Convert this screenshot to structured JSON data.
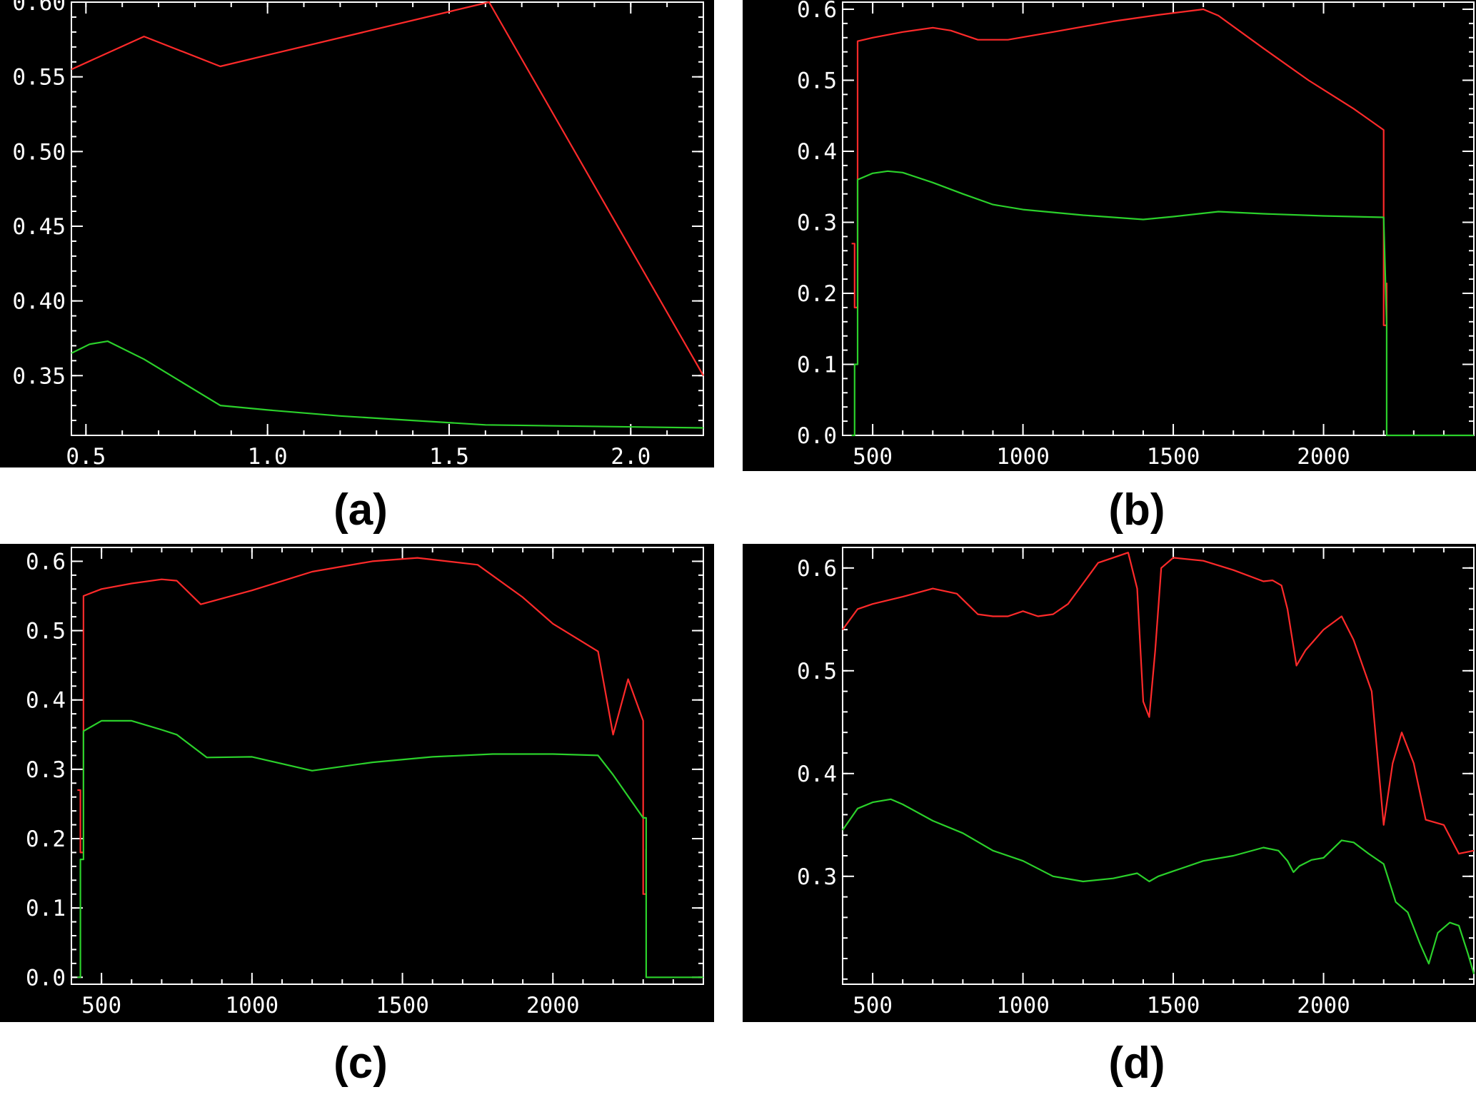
{
  "colors": {
    "background": "#000000",
    "page": "#ffffff",
    "axis": "#ffffff",
    "series_red": "#ff2a2a",
    "series_green": "#2bd12b"
  },
  "chart_data": [
    {
      "id": "a",
      "label": "(a)",
      "type": "line",
      "xlim": [
        0.46,
        2.2
      ],
      "ylim": [
        0.31,
        0.6
      ],
      "xticks": [
        0.5,
        1.0,
        1.5,
        2.0
      ],
      "xtick_labels": [
        "0.5",
        "1.0",
        "1.5",
        "2.0"
      ],
      "yticks": [
        0.35,
        0.4,
        0.45,
        0.5,
        0.55,
        0.6
      ],
      "ytick_labels": [
        "0.35",
        "0.40",
        "0.45",
        "0.50",
        "0.55",
        "0.60"
      ],
      "grid": false,
      "series": [
        {
          "color": "#ff2a2a",
          "x": [
            0.46,
            0.66,
            0.87,
            1.61,
            2.2
          ],
          "y": [
            0.555,
            0.577,
            0.557,
            0.603,
            0.35
          ]
        },
        {
          "color": "#2bd12b",
          "x": [
            0.46,
            0.51,
            0.56,
            0.66,
            0.87,
            1.0,
            1.2,
            1.4,
            1.6,
            2.2
          ],
          "y": [
            0.365,
            0.371,
            0.373,
            0.361,
            0.33,
            0.327,
            0.323,
            0.32,
            0.317,
            0.315
          ]
        }
      ]
    },
    {
      "id": "b",
      "label": "(b)",
      "type": "line",
      "xlim": [
        400,
        2500
      ],
      "ylim": [
        0,
        0.61
      ],
      "xticks": [
        500,
        1000,
        1500,
        2000
      ],
      "xtick_labels": [
        "500",
        "1000",
        "1500",
        "2000"
      ],
      "yticks": [
        0,
        0.1,
        0.2,
        0.3,
        0.4,
        0.5,
        0.6
      ],
      "ytick_labels": [
        "0.0",
        "0.1",
        "0.2",
        "0.3",
        "0.4",
        "0.5",
        "0.6"
      ],
      "grid": false,
      "series": [
        {
          "color": "#ff2a2a",
          "x": [
            430,
            440,
            440,
            450,
            450,
            500,
            600,
            700,
            760,
            850,
            950,
            1100,
            1300,
            1450,
            1600,
            1650,
            1800,
            1950,
            2100,
            2200,
            2200,
            2210,
            2210
          ],
          "y": [
            0.27,
            0.27,
            0.18,
            0.18,
            0.555,
            0.56,
            0.568,
            0.574,
            0.57,
            0.557,
            0.557,
            0.568,
            0.583,
            0.592,
            0.6,
            0.591,
            0.545,
            0.5,
            0.46,
            0.43,
            0.155,
            0.155,
            0.215
          ]
        },
        {
          "color": "#2bd12b",
          "x": [
            430,
            440,
            440,
            450,
            450,
            500,
            550,
            600,
            700,
            800,
            900,
            1000,
            1200,
            1400,
            1500,
            1650,
            1800,
            2000,
            2200,
            2210,
            2210,
            2500
          ],
          "y": [
            0,
            0,
            0.1,
            0.1,
            0.36,
            0.369,
            0.372,
            0.37,
            0.356,
            0.34,
            0.325,
            0.318,
            0.31,
            0.304,
            0.308,
            0.315,
            0.312,
            0.309,
            0.307,
            0.155,
            0,
            0
          ]
        }
      ]
    },
    {
      "id": "c",
      "label": "(c)",
      "type": "line",
      "xlim": [
        400,
        2500
      ],
      "ylim": [
        -0.01,
        0.62
      ],
      "xticks": [
        500,
        1000,
        1500,
        2000
      ],
      "xtick_labels": [
        "500",
        "1000",
        "1500",
        "2000"
      ],
      "yticks": [
        0,
        0.1,
        0.2,
        0.3,
        0.4,
        0.5,
        0.6
      ],
      "ytick_labels": [
        "0.0",
        "0.1",
        "0.2",
        "0.3",
        "0.4",
        "0.5",
        "0.6"
      ],
      "grid": false,
      "series": [
        {
          "color": "#ff2a2a",
          "x": [
            420,
            430,
            430,
            440,
            440,
            500,
            600,
            700,
            750,
            830,
            1000,
            1200,
            1400,
            1550,
            1750,
            1900,
            2000,
            2150,
            2200,
            2250,
            2300,
            2300,
            2310,
            2310
          ],
          "y": [
            0.27,
            0.27,
            0.18,
            0.18,
            0.55,
            0.56,
            0.568,
            0.574,
            0.572,
            0.538,
            0.558,
            0.585,
            0.6,
            0.605,
            0.595,
            0.548,
            0.51,
            0.47,
            0.35,
            0.43,
            0.37,
            0.12,
            0.12,
            0.185
          ]
        },
        {
          "color": "#2bd12b",
          "x": [
            420,
            430,
            430,
            440,
            440,
            500,
            600,
            700,
            750,
            850,
            1000,
            1200,
            1400,
            1600,
            1800,
            2000,
            2150,
            2200,
            2300,
            2310,
            2310,
            2500
          ],
          "y": [
            0,
            0,
            0.17,
            0.17,
            0.355,
            0.37,
            0.37,
            0.357,
            0.35,
            0.317,
            0.318,
            0.298,
            0.31,
            0.318,
            0.322,
            0.322,
            0.32,
            0.292,
            0.23,
            0.23,
            0,
            0
          ]
        }
      ]
    },
    {
      "id": "d",
      "label": "(d)",
      "type": "line",
      "xlim": [
        400,
        2500
      ],
      "ylim": [
        0.195,
        0.62
      ],
      "xticks": [
        500,
        1000,
        1500,
        2000
      ],
      "xtick_labels": [
        "500",
        "1000",
        "1500",
        "2000"
      ],
      "yticks": [
        0.3,
        0.4,
        0.5,
        0.6
      ],
      "ytick_labels": [
        "0.3",
        "0.4",
        "0.5",
        "0.6"
      ],
      "grid": false,
      "series": [
        {
          "color": "#ff2a2a",
          "x": [
            400,
            450,
            500,
            600,
            700,
            780,
            850,
            900,
            950,
            1000,
            1050,
            1100,
            1150,
            1200,
            1250,
            1300,
            1350,
            1380,
            1400,
            1420,
            1440,
            1460,
            1500,
            1600,
            1700,
            1800,
            1830,
            1860,
            1880,
            1910,
            1940,
            2000,
            2060,
            2100,
            2130,
            2160,
            2200,
            2230,
            2260,
            2300,
            2340,
            2400,
            2450,
            2500
          ],
          "y": [
            0.54,
            0.56,
            0.565,
            0.572,
            0.58,
            0.575,
            0.555,
            0.553,
            0.553,
            0.558,
            0.553,
            0.555,
            0.565,
            0.585,
            0.605,
            0.61,
            0.615,
            0.58,
            0.47,
            0.455,
            0.52,
            0.6,
            0.61,
            0.607,
            0.598,
            0.587,
            0.588,
            0.583,
            0.56,
            0.505,
            0.52,
            0.54,
            0.553,
            0.53,
            0.505,
            0.48,
            0.35,
            0.41,
            0.44,
            0.41,
            0.355,
            0.35,
            0.322,
            0.325
          ]
        },
        {
          "color": "#2bd12b",
          "x": [
            400,
            450,
            500,
            560,
            600,
            700,
            800,
            900,
            1000,
            1100,
            1200,
            1300,
            1380,
            1420,
            1450,
            1500,
            1600,
            1700,
            1800,
            1850,
            1880,
            1900,
            1920,
            1960,
            2000,
            2060,
            2100,
            2150,
            2200,
            2240,
            2280,
            2320,
            2350,
            2380,
            2420,
            2450,
            2480,
            2500
          ],
          "y": [
            0.345,
            0.366,
            0.372,
            0.375,
            0.37,
            0.354,
            0.342,
            0.325,
            0.315,
            0.3,
            0.295,
            0.298,
            0.303,
            0.295,
            0.3,
            0.305,
            0.315,
            0.32,
            0.328,
            0.325,
            0.315,
            0.304,
            0.31,
            0.316,
            0.318,
            0.335,
            0.333,
            0.322,
            0.312,
            0.275,
            0.265,
            0.235,
            0.215,
            0.245,
            0.255,
            0.252,
            0.225,
            0.205
          ]
        }
      ]
    }
  ]
}
